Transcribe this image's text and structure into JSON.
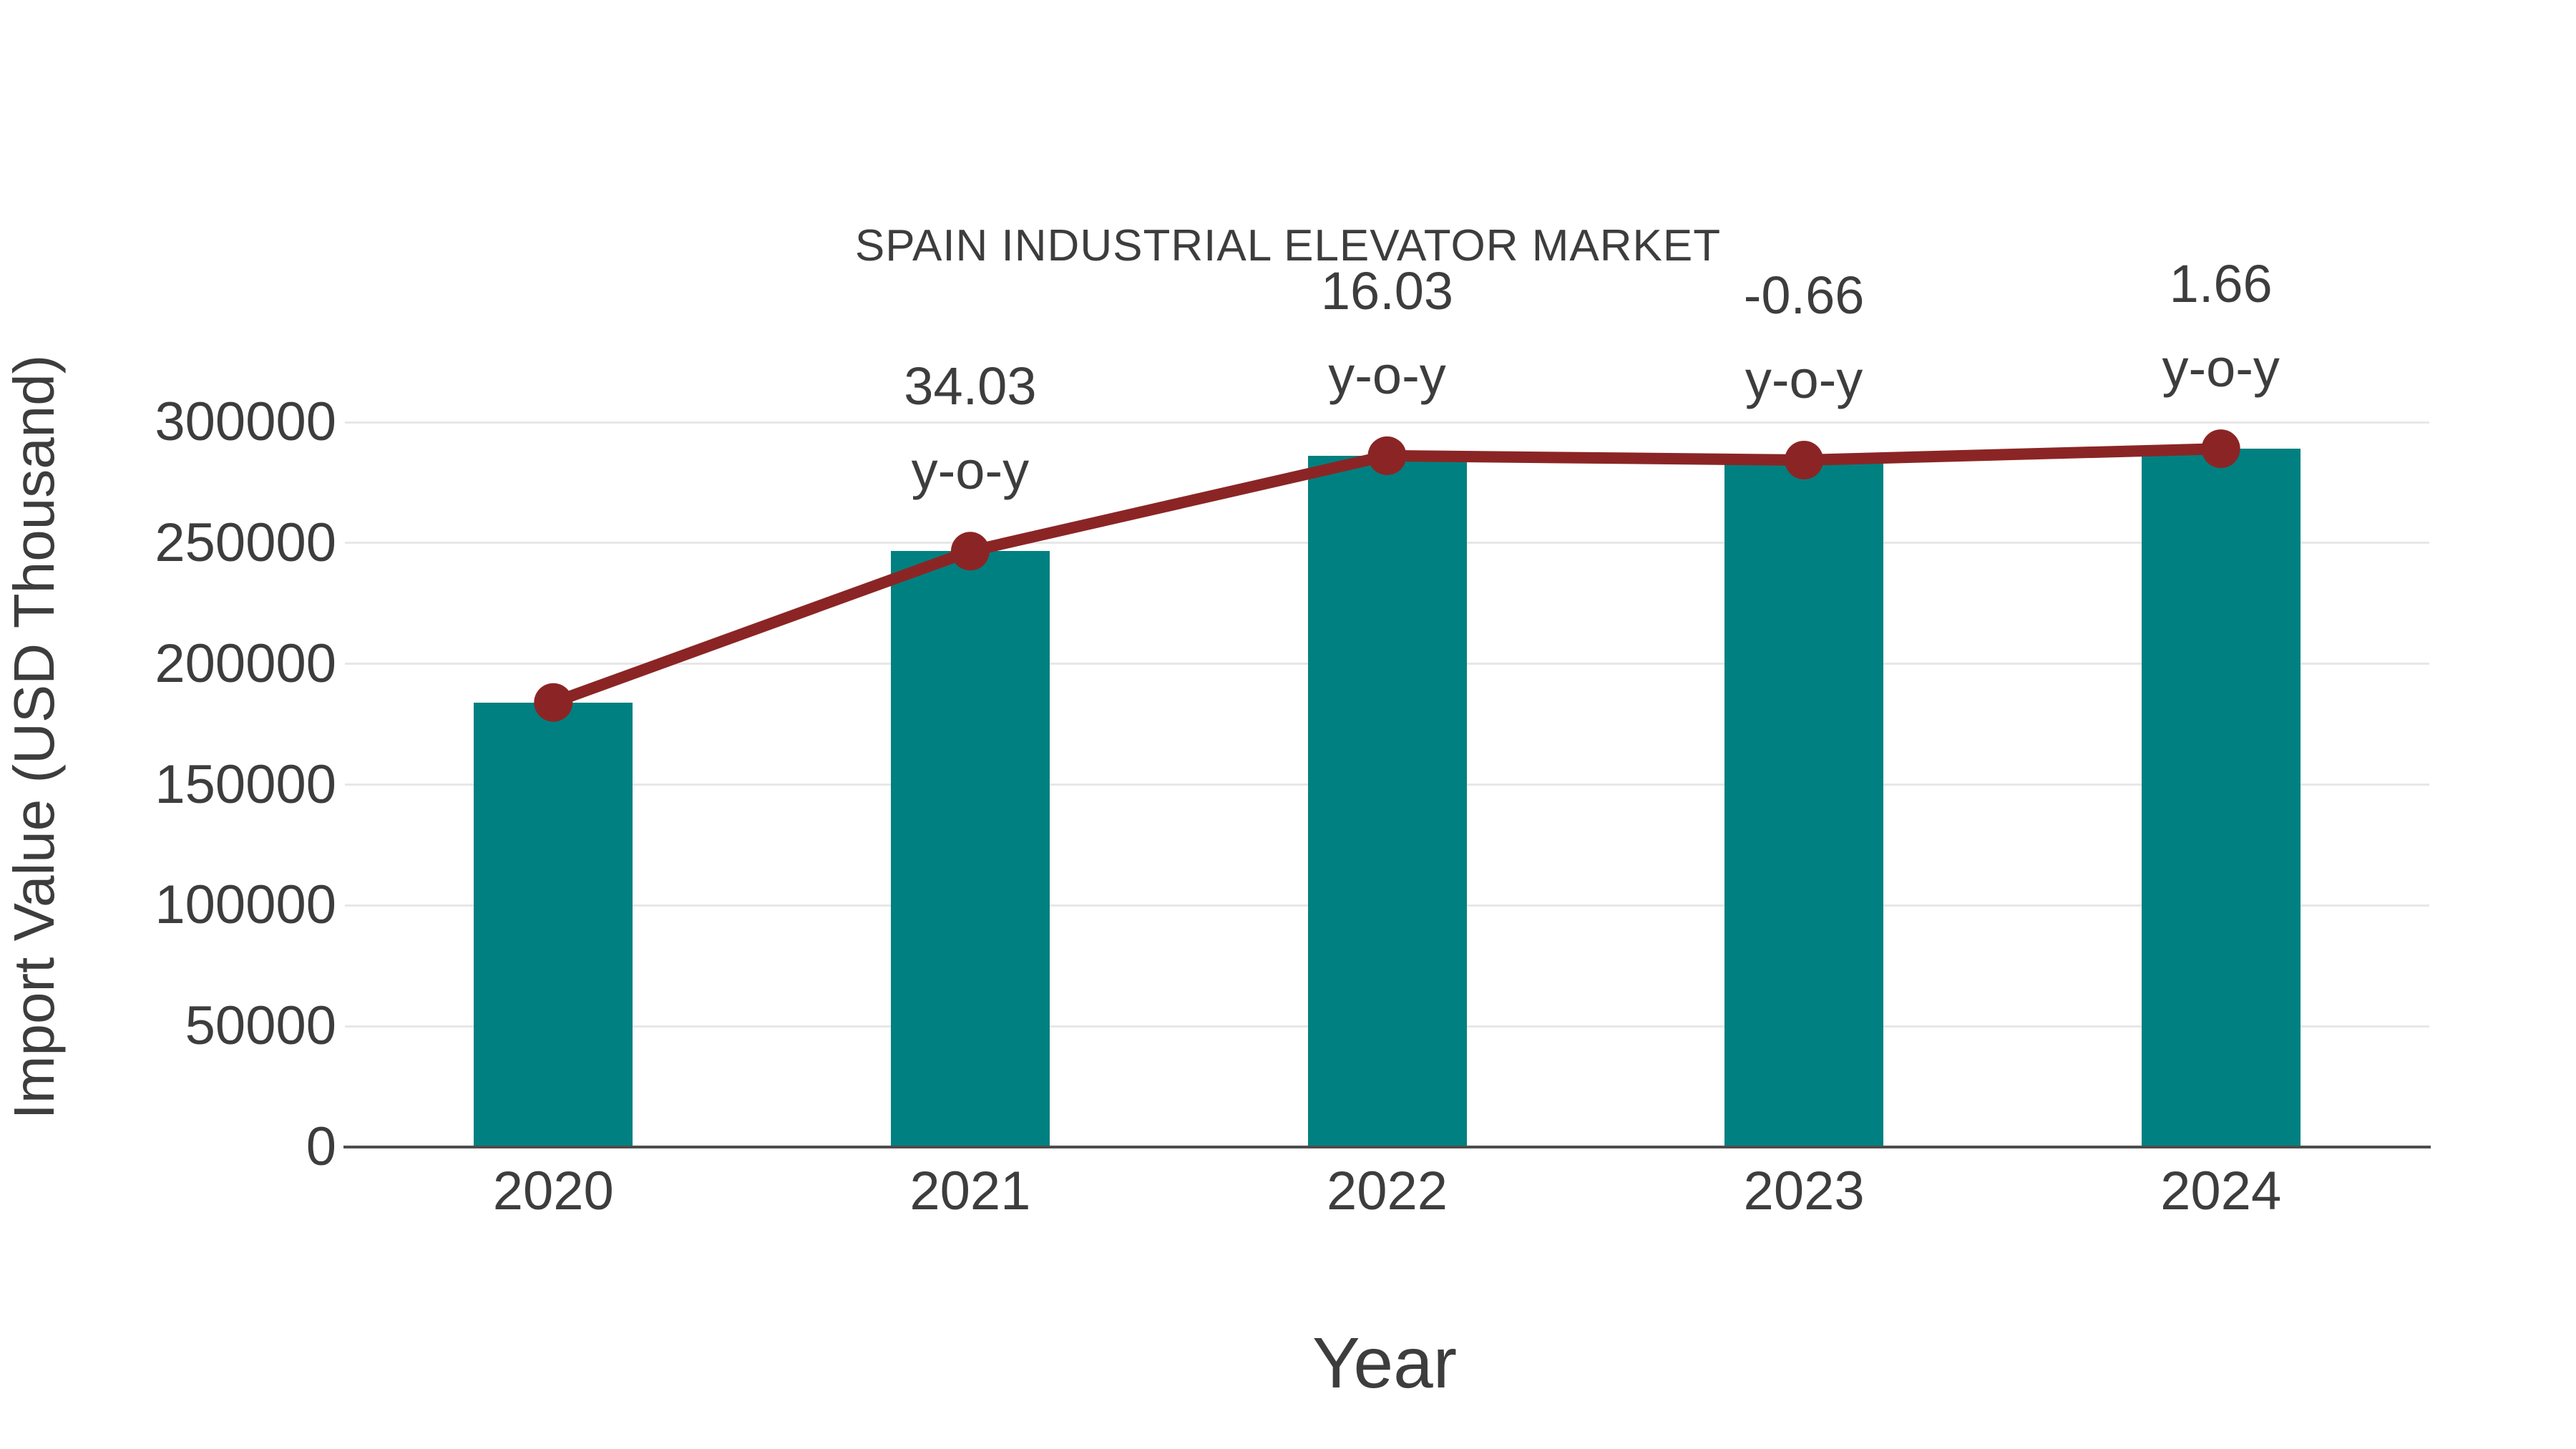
{
  "chart_data": {
    "type": "bar",
    "title": "SPAIN INDUSTRIAL ELEVATOR MARKET",
    "xlabel": "Year",
    "ylabel": "Import Value (USD Thousand)",
    "categories": [
      "2020",
      "2021",
      "2022",
      "2023",
      "2024"
    ],
    "series": [
      {
        "name": "import-value-bars",
        "type": "bar",
        "color": "#008080",
        "values": [
          184000,
          246600,
          286100,
          284300,
          289000
        ]
      },
      {
        "name": "import-value-trend",
        "type": "line",
        "color": "#8B2525",
        "values": [
          184000,
          246600,
          286100,
          284300,
          289000
        ]
      }
    ],
    "annotations": [
      {
        "category": "2021",
        "value_text": "34.03",
        "suffix": "y-o-y"
      },
      {
        "category": "2022",
        "value_text": "16.03",
        "suffix": "y-o-y"
      },
      {
        "category": "2023",
        "value_text": "-0.66",
        "suffix": "y-o-y"
      },
      {
        "category": "2024",
        "value_text": "1.66",
        "suffix": "y-o-y"
      }
    ],
    "ylim": [
      0,
      300000
    ],
    "yticks": [
      "0",
      "50000",
      "100000",
      "150000",
      "200000",
      "250000",
      "300000"
    ],
    "ytick_values": [
      0,
      50000,
      100000,
      150000,
      200000,
      250000,
      300000
    ],
    "grid": true,
    "legend": false,
    "colors": {
      "bar": "#008080",
      "line": "#8B2525",
      "text": "#3d3d3d",
      "grid": "#e7e7e7",
      "axis": "#4d4d4d",
      "background": "#ffffff"
    }
  }
}
